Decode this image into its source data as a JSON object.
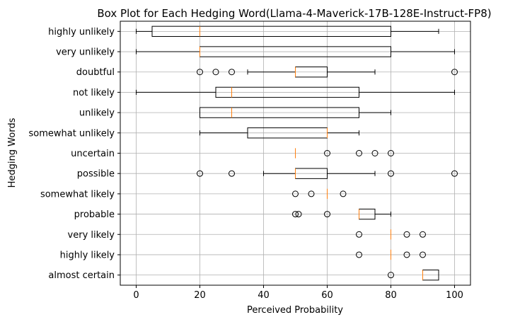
{
  "chart_data": {
    "type": "boxplot",
    "orientation": "horizontal",
    "title": "Box Plot for Each Hedging Word(Llama-4-Maverick-17B-128E-Instruct-FP8)",
    "xlabel": "Perceived Probability",
    "ylabel": "Hedging Words",
    "xlim": [
      -5,
      105
    ],
    "xticks": [
      0,
      20,
      40,
      60,
      80,
      100
    ],
    "grid": true,
    "colors": {
      "box": "#000000",
      "median": "#ff7f0e",
      "grid": "#b0b0b0"
    },
    "categories": [
      {
        "label": "highly unlikely",
        "whisker_low": 0,
        "q1": 5,
        "median": 20,
        "q3": 80,
        "whisker_high": 95,
        "fliers": []
      },
      {
        "label": "very unlikely",
        "whisker_low": 0,
        "q1": 20,
        "median": 20,
        "q3": 80,
        "whisker_high": 100,
        "fliers": []
      },
      {
        "label": "doubtful",
        "whisker_low": 35,
        "q1": 50,
        "median": 50,
        "q3": 60,
        "whisker_high": 75,
        "fliers": [
          20,
          25,
          30,
          100
        ]
      },
      {
        "label": "not likely",
        "whisker_low": 0,
        "q1": 25,
        "median": 30,
        "q3": 70,
        "whisker_high": 100,
        "fliers": []
      },
      {
        "label": "unlikely",
        "whisker_low": 20,
        "q1": 20,
        "median": 30,
        "q3": 70,
        "whisker_high": 80,
        "fliers": []
      },
      {
        "label": "somewhat unlikely",
        "whisker_low": 20,
        "q1": 35,
        "median": 60,
        "q3": 60,
        "whisker_high": 70,
        "fliers": []
      },
      {
        "label": "uncertain",
        "whisker_low": 50,
        "q1": 50,
        "median": 50,
        "q3": 50,
        "whisker_high": 50,
        "fliers": [
          60,
          70,
          75,
          80
        ]
      },
      {
        "label": "possible",
        "whisker_low": 40,
        "q1": 50,
        "median": 50,
        "q3": 60,
        "whisker_high": 75,
        "fliers": [
          20,
          30,
          80,
          100
        ]
      },
      {
        "label": "somewhat likely",
        "whisker_low": 60,
        "q1": 60,
        "median": 60,
        "q3": 60,
        "whisker_high": 60,
        "fliers": [
          50,
          55,
          65
        ]
      },
      {
        "label": "probable",
        "whisker_low": 70,
        "q1": 70,
        "median": 70,
        "q3": 75,
        "whisker_high": 80,
        "fliers": [
          50,
          51,
          60
        ]
      },
      {
        "label": "very likely",
        "whisker_low": 80,
        "q1": 80,
        "median": 80,
        "q3": 80,
        "whisker_high": 80,
        "fliers": [
          70,
          85,
          90
        ]
      },
      {
        "label": "highly likely",
        "whisker_low": 80,
        "q1": 80,
        "median": 80,
        "q3": 80,
        "whisker_high": 80,
        "fliers": [
          70,
          85,
          90
        ]
      },
      {
        "label": "almost certain",
        "whisker_low": 90,
        "q1": 90,
        "median": 90,
        "q3": 95,
        "whisker_high": 95,
        "fliers": [
          80
        ]
      }
    ]
  }
}
